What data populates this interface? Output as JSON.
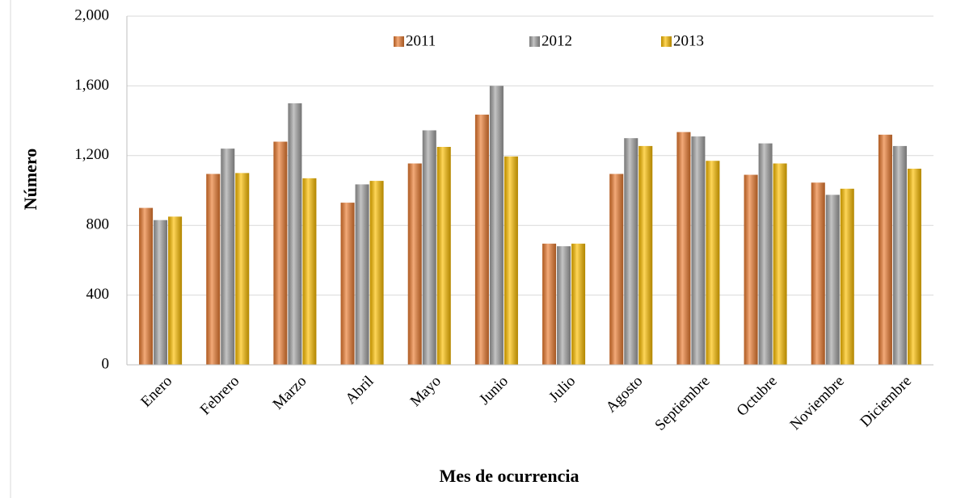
{
  "chart_data": {
    "type": "bar",
    "x_label": "Mes de ocurrencia",
    "y_label": "Número",
    "categories": [
      "Enero",
      "Febrero",
      "Marzo",
      "Abril",
      "Mayo",
      "Junio",
      "Julio",
      "Agosto",
      "Septiembre",
      "Octubre",
      "Noviembre",
      "Diciembre"
    ],
    "series": [
      {
        "name": "2011",
        "color": "#ed7d31",
        "values": [
          900,
          1095,
          1280,
          930,
          1155,
          1435,
          695,
          1095,
          1335,
          1090,
          1045,
          1320
        ]
      },
      {
        "name": "2012",
        "color": "#a5a5a5",
        "values": [
          830,
          1240,
          1500,
          1035,
          1345,
          1600,
          680,
          1300,
          1310,
          1270,
          975,
          1255
        ]
      },
      {
        "name": "2013",
        "color": "#ffc000",
        "values": [
          850,
          1100,
          1070,
          1055,
          1250,
          1195,
          695,
          1255,
          1170,
          1155,
          1010,
          1125
        ]
      }
    ],
    "ylim": [
      0,
      2000
    ],
    "yticks": [
      0,
      400,
      800,
      {
        "value": 1200,
        "label": "1,200"
      },
      {
        "value": 1600,
        "label": "1,600"
      },
      {
        "value": 2000,
        "label": "2,000"
      }
    ],
    "legend": "top"
  }
}
